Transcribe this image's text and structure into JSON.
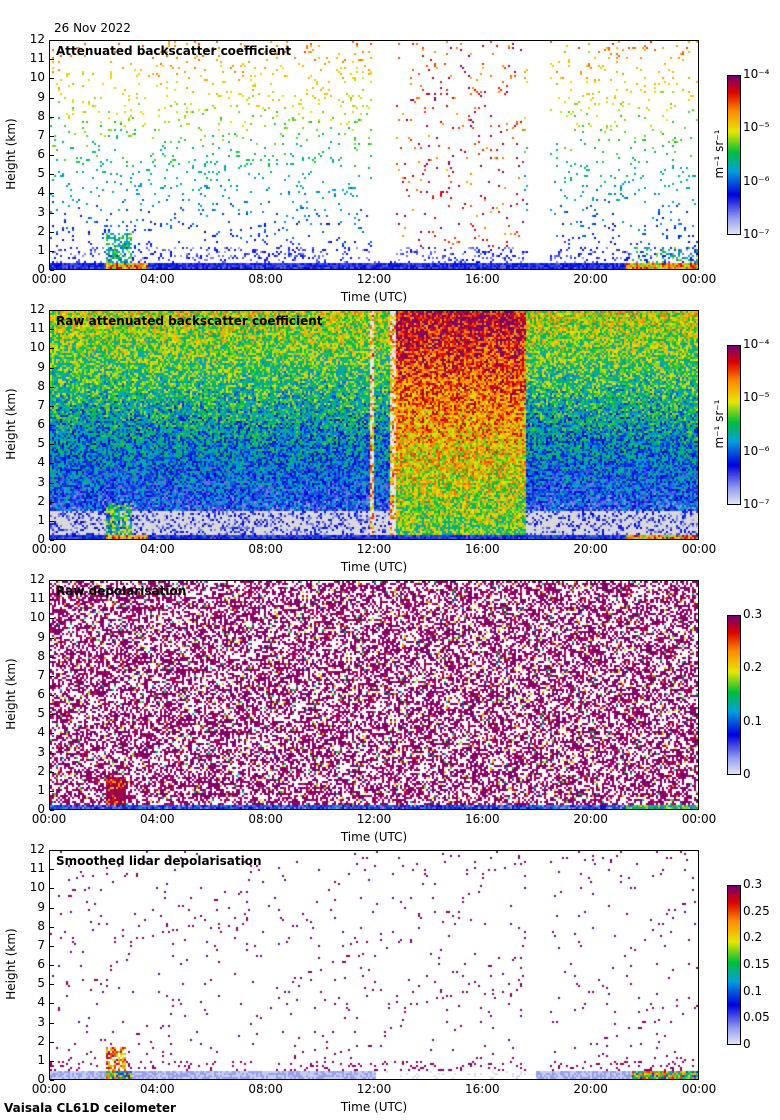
{
  "date": "26 Nov 2022",
  "footer": "Vaisala CL61D ceilometer",
  "chart_data": [
    {
      "type": "heatmap",
      "title": "Attenuated backscatter coefficient",
      "xlabel": "Time (UTC)",
      "ylabel": "Height (km)",
      "xticks": [
        "00:00",
        "04:00",
        "08:00",
        "12:00",
        "16:00",
        "20:00",
        "00:00"
      ],
      "yticks": [
        "0",
        "1",
        "2",
        "3",
        "4",
        "5",
        "6",
        "7",
        "8",
        "9",
        "10",
        "11",
        "12"
      ],
      "ylim": [
        0,
        12
      ],
      "xlim_hours": [
        0,
        24
      ],
      "colorbar": {
        "scale": "log",
        "ticks": [
          "10⁻⁷",
          "10⁻⁶",
          "10⁻⁵",
          "10⁻⁴"
        ],
        "unit": "m⁻¹ sr⁻¹",
        "range": [
          1e-07,
          0.0001
        ]
      }
    },
    {
      "type": "heatmap",
      "title": "Raw attenuated backscatter coefficient",
      "xlabel": "Time (UTC)",
      "ylabel": "Height (km)",
      "xticks": [
        "00:00",
        "04:00",
        "08:00",
        "12:00",
        "16:00",
        "20:00",
        "00:00"
      ],
      "yticks": [
        "0",
        "1",
        "2",
        "3",
        "4",
        "5",
        "6",
        "7",
        "8",
        "9",
        "10",
        "11",
        "12"
      ],
      "ylim": [
        0,
        12
      ],
      "xlim_hours": [
        0,
        24
      ],
      "colorbar": {
        "scale": "log",
        "ticks": [
          "10⁻⁷",
          "10⁻⁶",
          "10⁻⁵",
          "10⁻⁴"
        ],
        "unit": "m⁻¹ sr⁻¹",
        "range": [
          1e-07,
          0.0001
        ]
      }
    },
    {
      "type": "heatmap",
      "title": "Raw depolarisation",
      "xlabel": "Time (UTC)",
      "ylabel": "Height (km)",
      "xticks": [
        "00:00",
        "04:00",
        "08:00",
        "12:00",
        "16:00",
        "20:00",
        "00:00"
      ],
      "yticks": [
        "0",
        "1",
        "2",
        "3",
        "4",
        "5",
        "6",
        "7",
        "8",
        "9",
        "10",
        "11",
        "12"
      ],
      "ylim": [
        0,
        12
      ],
      "xlim_hours": [
        0,
        24
      ],
      "colorbar": {
        "scale": "linear",
        "ticks": [
          "0",
          "0.1",
          "0.2",
          "0.3"
        ],
        "unit": "",
        "range": [
          0,
          0.3
        ]
      }
    },
    {
      "type": "heatmap",
      "title": "Smoothed lidar depolarisation",
      "xlabel": "Time (UTC)",
      "ylabel": "Height (km)",
      "xticks": [
        "00:00",
        "04:00",
        "08:00",
        "12:00",
        "16:00",
        "20:00",
        "00:00"
      ],
      "yticks": [
        "0",
        "1",
        "2",
        "3",
        "4",
        "5",
        "6",
        "7",
        "8",
        "9",
        "10",
        "11",
        "12"
      ],
      "ylim": [
        0,
        12
      ],
      "xlim_hours": [
        0,
        24
      ],
      "colorbar": {
        "scale": "linear",
        "ticks": [
          "0",
          "0.05",
          "0.1",
          "0.15",
          "0.2",
          "0.25",
          "0.3"
        ],
        "unit": "",
        "range": [
          0,
          0.3
        ]
      }
    }
  ]
}
